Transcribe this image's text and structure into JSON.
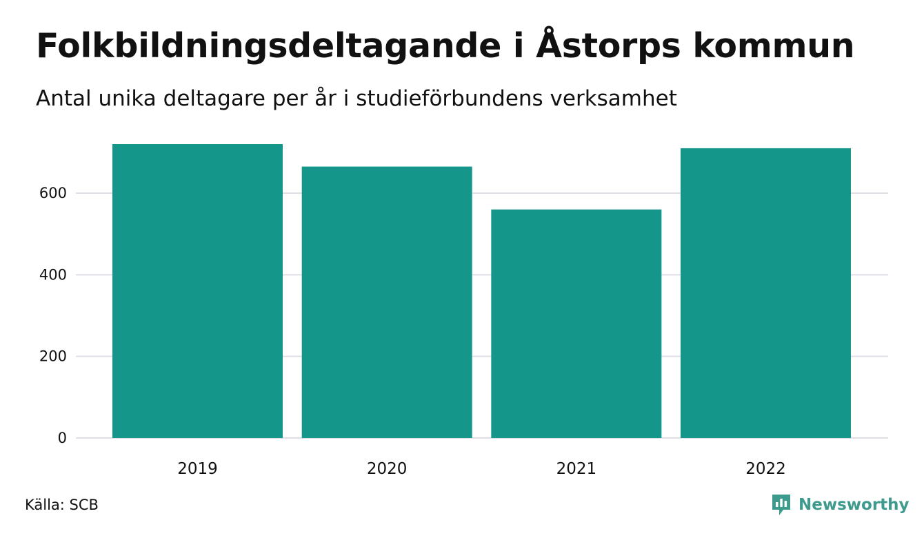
{
  "title": "Folkbildningsdeltagande i Åstorps kommun",
  "subtitle": "Antal unika deltagare per år i studieförbundens verksamhet",
  "source": "Källa: SCB",
  "brand": {
    "name": "Newsworthy",
    "icon": "newsworthy-logo-icon",
    "color": "#3d9b8d"
  },
  "chart_data": {
    "type": "bar",
    "title": "Folkbildningsdeltagande i Åstorps kommun",
    "subtitle": "Antal unika deltagare per år i studieförbundens verksamhet",
    "categories": [
      "2019",
      "2020",
      "2021",
      "2022"
    ],
    "values": [
      720,
      665,
      560,
      710
    ],
    "ylim": [
      0,
      720
    ],
    "yticks": [
      0,
      200,
      400,
      600
    ],
    "ytick_labels": [
      "0",
      "200",
      "400",
      "600"
    ],
    "xlabel": "",
    "ylabel": "",
    "grid": true,
    "legend": "none",
    "bar_color": "#14968a",
    "grid_color": "#dedee6"
  }
}
